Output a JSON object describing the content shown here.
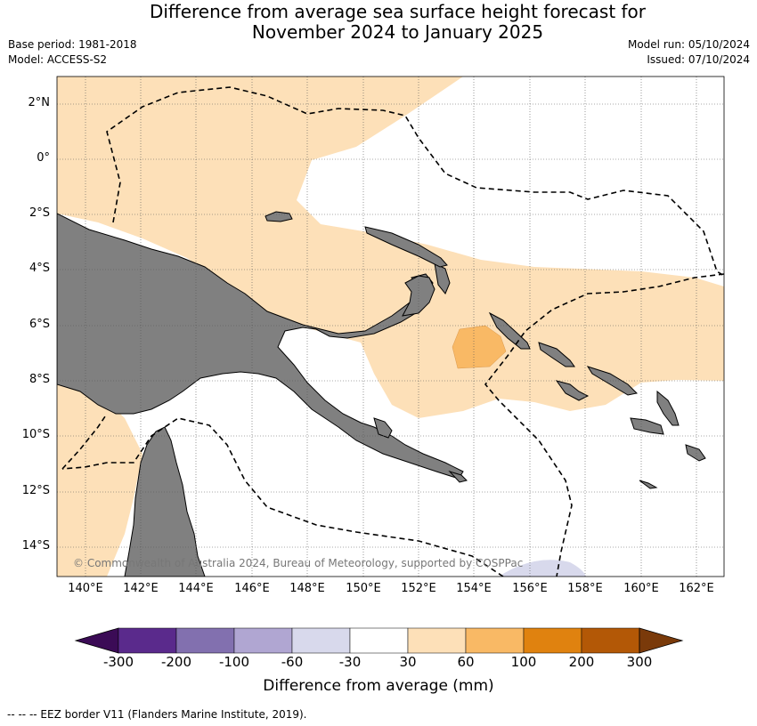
{
  "title": {
    "line1": "Difference from average sea surface height forecast for",
    "line2": "November 2024 to January 2025"
  },
  "meta": {
    "base_period": "Base period: 1981-2018",
    "model": "Model: ACCESS-S2",
    "model_run": "Model run: 05/10/2024",
    "issued": "Issued: 07/10/2024"
  },
  "axes": {
    "lat_labels": [
      "2°N",
      "0°",
      "2°S",
      "4°S",
      "6°S",
      "8°S",
      "10°S",
      "12°S",
      "14°S"
    ],
    "lon_labels": [
      "140°E",
      "142°E",
      "144°E",
      "146°E",
      "148°E",
      "150°E",
      "152°E",
      "154°E",
      "156°E",
      "158°E",
      "160°E",
      "162°E"
    ]
  },
  "copyright": "© Commonwealth of Australia 2024, Bureau of Meteorology, supported by COSPPac",
  "colorbar": {
    "labels": [
      "-300",
      "-200",
      "-100",
      "-60",
      "-30",
      "30",
      "60",
      "100",
      "200",
      "300"
    ],
    "colors": [
      "#3b0b56",
      "#5a2a8c",
      "#8270af",
      "#b0a6d2",
      "#d8d9ec",
      "#ffffff",
      "#fde0b8",
      "#f9b965",
      "#e0820f",
      "#b35806",
      "#7a3a0a"
    ],
    "title": "Difference from average (mm)"
  },
  "legend_note": "--  --  -- EEZ border V11 (Flanders Marine Institute, 2019).",
  "colors": {
    "land": "#808080",
    "light_orange": "#fde0b8",
    "mid_orange": "#f9b965",
    "light_purple": "#d8d9ec"
  }
}
